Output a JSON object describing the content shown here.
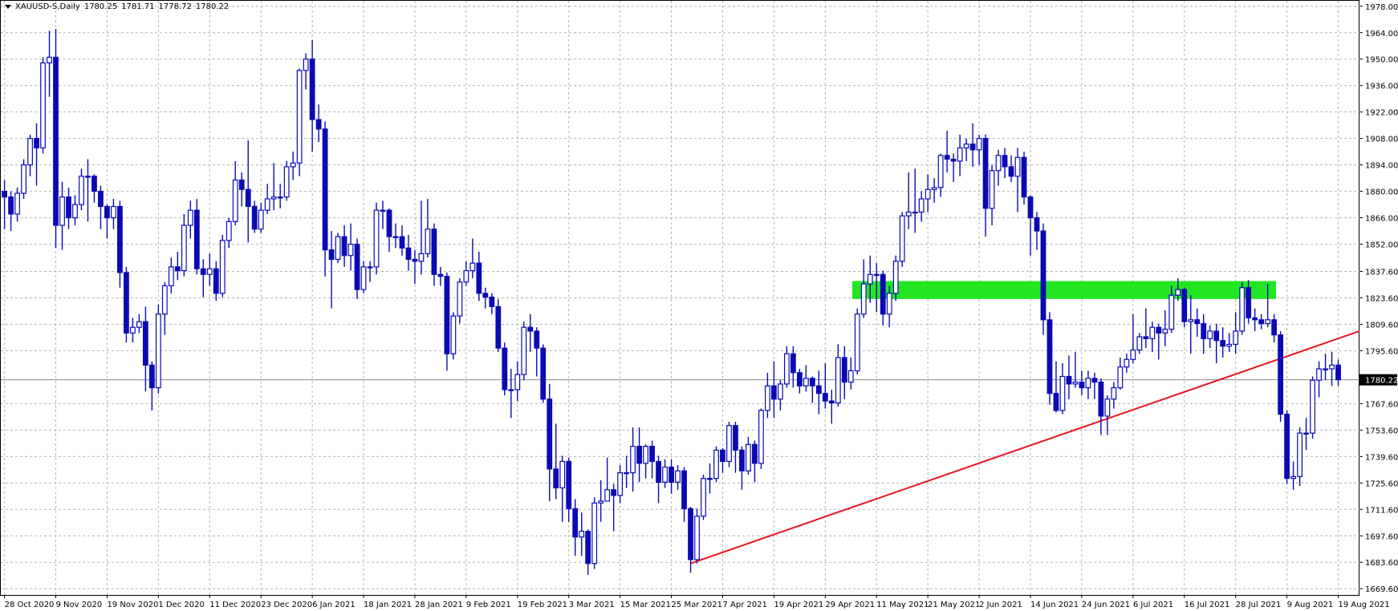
{
  "chart_data": {
    "type": "candlestick",
    "symbol": "XAUUSD-S,Daily",
    "quote": [
      1780.25,
      1781.71,
      1778.72,
      1780.22
    ],
    "categories": [
      "28 Oct 2020",
      null,
      null,
      null,
      null,
      null,
      null,
      null,
      "9 Nov 2020",
      null,
      null,
      null,
      null,
      null,
      null,
      null,
      "19 Nov 2020",
      null,
      null,
      null,
      null,
      null,
      null,
      null,
      "1 Dec 2020",
      null,
      null,
      null,
      null,
      null,
      null,
      null,
      "11 Dec 2020",
      null,
      null,
      null,
      null,
      null,
      null,
      null,
      "23 Dec 2020",
      null,
      null,
      null,
      null,
      null,
      null,
      null,
      "6 Jan 2021",
      null,
      null,
      null,
      null,
      null,
      null,
      null,
      "18 Jan 2021",
      null,
      null,
      null,
      null,
      null,
      null,
      null,
      "28 Jan 2021",
      null,
      null,
      null,
      null,
      null,
      null,
      null,
      "9 Feb 2021",
      null,
      null,
      null,
      null,
      null,
      null,
      null,
      "19 Feb 2021",
      null,
      null,
      null,
      null,
      null,
      null,
      null,
      "3 Mar 2021",
      null,
      null,
      null,
      null,
      null,
      null,
      null,
      "15 Mar 2021",
      null,
      null,
      null,
      null,
      null,
      null,
      null,
      "25 Mar 2021",
      null,
      null,
      null,
      null,
      null,
      null,
      null,
      "7 Apr 2021",
      null,
      null,
      null,
      null,
      null,
      null,
      null,
      "19 Apr 2021",
      null,
      null,
      null,
      null,
      null,
      null,
      null,
      "29 Apr 2021",
      null,
      null,
      null,
      null,
      null,
      null,
      null,
      "11 May 2021",
      null,
      null,
      null,
      null,
      null,
      null,
      null,
      "21 May 2021",
      null,
      null,
      null,
      null,
      null,
      null,
      null,
      "2 Jun 2021",
      null,
      null,
      null,
      null,
      null,
      null,
      null,
      "14 Jun 2021",
      null,
      null,
      null,
      null,
      null,
      null,
      null,
      "24 Jun 2021",
      null,
      null,
      null,
      null,
      null,
      null,
      null,
      "6 Jul 2021",
      null,
      null,
      null,
      null,
      null,
      null,
      null,
      "16 Jul 2021",
      null,
      null,
      null,
      null,
      null,
      null,
      null,
      "28 Jul 2021",
      null,
      null,
      null,
      null,
      null,
      null,
      null,
      "9 Aug 2021",
      null,
      null,
      null,
      null,
      null,
      null,
      null,
      "19 Aug 2021"
    ],
    "ohlc": [
      [
        1880,
        1886,
        1860,
        1877
      ],
      [
        1877,
        1880,
        1859,
        1868
      ],
      [
        1868,
        1882,
        1864,
        1879
      ],
      [
        1879,
        1897,
        1876,
        1894
      ],
      [
        1894,
        1910,
        1888,
        1908
      ],
      [
        1908,
        1916,
        1883,
        1903
      ],
      [
        1903,
        1951,
        1900,
        1948
      ],
      [
        1948,
        1965,
        1930,
        1951
      ],
      [
        1951,
        1966,
        1850,
        1862
      ],
      [
        1862,
        1885,
        1849,
        1877
      ],
      [
        1877,
        1882,
        1860,
        1866
      ],
      [
        1866,
        1878,
        1862,
        1873
      ],
      [
        1873,
        1892,
        1870,
        1888
      ],
      [
        1888,
        1897,
        1864,
        1888
      ],
      [
        1888,
        1889,
        1874,
        1880
      ],
      [
        1880,
        1883,
        1860,
        1872
      ],
      [
        1872,
        1873,
        1855,
        1866
      ],
      [
        1866,
        1876,
        1860,
        1872
      ],
      [
        1872,
        1875,
        1829,
        1837
      ],
      [
        1837,
        1840,
        1800,
        1805
      ],
      [
        1805,
        1813,
        1800,
        1808
      ],
      [
        1808,
        1815,
        1805,
        1811
      ],
      [
        1811,
        1819,
        1774,
        1788
      ],
      [
        1788,
        1790,
        1764,
        1776
      ],
      [
        1776,
        1820,
        1773,
        1815
      ],
      [
        1815,
        1832,
        1804,
        1830
      ],
      [
        1830,
        1845,
        1826,
        1840
      ],
      [
        1840,
        1848,
        1833,
        1838
      ],
      [
        1838,
        1868,
        1835,
        1862
      ],
      [
        1862,
        1875,
        1855,
        1870
      ],
      [
        1870,
        1876,
        1836,
        1839
      ],
      [
        1839,
        1844,
        1824,
        1836
      ],
      [
        1836,
        1847,
        1830,
        1839
      ],
      [
        1839,
        1843,
        1822,
        1826
      ],
      [
        1826,
        1857,
        1824,
        1854
      ],
      [
        1854,
        1866,
        1850,
        1864
      ],
      [
        1864,
        1896,
        1862,
        1886
      ],
      [
        1886,
        1890,
        1872,
        1881
      ],
      [
        1881,
        1907,
        1853,
        1872
      ],
      [
        1872,
        1875,
        1858,
        1860
      ],
      [
        1860,
        1874,
        1858,
        1870
      ],
      [
        1870,
        1884,
        1868,
        1876
      ],
      [
        1876,
        1895,
        1870,
        1877
      ],
      [
        1877,
        1884,
        1871,
        1877
      ],
      [
        1877,
        1896,
        1875,
        1893
      ],
      [
        1893,
        1901,
        1886,
        1895
      ],
      [
        1895,
        1945,
        1888,
        1944
      ],
      [
        1944,
        1953,
        1934,
        1950
      ],
      [
        1950,
        1960,
        1901,
        1918
      ],
      [
        1918,
        1926,
        1906,
        1913
      ],
      [
        1913,
        1917,
        1835,
        1849
      ],
      [
        1849,
        1859,
        1818,
        1844
      ],
      [
        1844,
        1858,
        1842,
        1856
      ],
      [
        1856,
        1862,
        1840,
        1846
      ],
      [
        1846,
        1863,
        1838,
        1852
      ],
      [
        1852,
        1855,
        1823,
        1828
      ],
      [
        1828,
        1843,
        1826,
        1840
      ],
      [
        1840,
        1843,
        1832,
        1840
      ],
      [
        1840,
        1874,
        1836,
        1870
      ],
      [
        1870,
        1875,
        1860,
        1870
      ],
      [
        1870,
        1871,
        1848,
        1856
      ],
      [
        1856,
        1863,
        1850,
        1856
      ],
      [
        1856,
        1862,
        1846,
        1850
      ],
      [
        1850,
        1857,
        1838,
        1844
      ],
      [
        1844,
        1849,
        1831,
        1843
      ],
      [
        1843,
        1875,
        1836,
        1847
      ],
      [
        1847,
        1876,
        1845,
        1860
      ],
      [
        1860,
        1863,
        1830,
        1836
      ],
      [
        1836,
        1840,
        1830,
        1835
      ],
      [
        1835,
        1837,
        1785,
        1794
      ],
      [
        1794,
        1816,
        1791,
        1814
      ],
      [
        1814,
        1834,
        1810,
        1832
      ],
      [
        1832,
        1843,
        1830,
        1838
      ],
      [
        1838,
        1855,
        1834,
        1842
      ],
      [
        1842,
        1848,
        1822,
        1826
      ],
      [
        1826,
        1829,
        1818,
        1824
      ],
      [
        1824,
        1826,
        1815,
        1819
      ],
      [
        1819,
        1823,
        1795,
        1797
      ],
      [
        1797,
        1800,
        1772,
        1775
      ],
      [
        1775,
        1786,
        1760,
        1775
      ],
      [
        1775,
        1790,
        1769,
        1783
      ],
      [
        1783,
        1811,
        1780,
        1808
      ],
      [
        1808,
        1815,
        1795,
        1806
      ],
      [
        1806,
        1808,
        1782,
        1797
      ],
      [
        1797,
        1799,
        1768,
        1770
      ],
      [
        1770,
        1778,
        1716,
        1733
      ],
      [
        1733,
        1757,
        1717,
        1723
      ],
      [
        1723,
        1740,
        1705,
        1737
      ],
      [
        1737,
        1739,
        1705,
        1712
      ],
      [
        1712,
        1717,
        1687,
        1697
      ],
      [
        1697,
        1710,
        1687,
        1700
      ],
      [
        1700,
        1701,
        1677,
        1683
      ],
      [
        1683,
        1718,
        1680,
        1715
      ],
      [
        1715,
        1727,
        1705,
        1716
      ],
      [
        1716,
        1739,
        1716,
        1722
      ],
      [
        1722,
        1725,
        1700,
        1719
      ],
      [
        1719,
        1735,
        1715,
        1731
      ],
      [
        1731,
        1740,
        1723,
        1731
      ],
      [
        1731,
        1755,
        1721,
        1745
      ],
      [
        1745,
        1755,
        1726,
        1736
      ],
      [
        1736,
        1746,
        1728,
        1745
      ],
      [
        1745,
        1748,
        1728,
        1737
      ],
      [
        1737,
        1740,
        1715,
        1726
      ],
      [
        1726,
        1738,
        1723,
        1734
      ],
      [
        1734,
        1738,
        1720,
        1726
      ],
      [
        1726,
        1735,
        1722,
        1732
      ],
      [
        1732,
        1734,
        1705,
        1712
      ],
      [
        1712,
        1713,
        1678,
        1685
      ],
      [
        1685,
        1712,
        1683,
        1708
      ],
      [
        1708,
        1730,
        1706,
        1728
      ],
      [
        1728,
        1736,
        1720,
        1728
      ],
      [
        1728,
        1745,
        1726,
        1743
      ],
      [
        1743,
        1744,
        1731,
        1737
      ],
      [
        1737,
        1758,
        1734,
        1756
      ],
      [
        1756,
        1758,
        1731,
        1743
      ],
      [
        1743,
        1745,
        1722,
        1732
      ],
      [
        1732,
        1750,
        1730,
        1746
      ],
      [
        1746,
        1748,
        1726,
        1736
      ],
      [
        1736,
        1765,
        1733,
        1764
      ],
      [
        1764,
        1784,
        1760,
        1777
      ],
      [
        1777,
        1790,
        1760,
        1770
      ],
      [
        1770,
        1780,
        1764,
        1778
      ],
      [
        1778,
        1798,
        1776,
        1794
      ],
      [
        1794,
        1798,
        1776,
        1784
      ],
      [
        1784,
        1786,
        1773,
        1777
      ],
      [
        1777,
        1788,
        1774,
        1781
      ],
      [
        1781,
        1782,
        1768,
        1777
      ],
      [
        1777,
        1785,
        1762,
        1773
      ],
      [
        1773,
        1789,
        1765,
        1769
      ],
      [
        1769,
        1775,
        1757,
        1768
      ],
      [
        1768,
        1799,
        1766,
        1792
      ],
      [
        1792,
        1798,
        1770,
        1779
      ],
      [
        1779,
        1792,
        1775,
        1785
      ],
      [
        1785,
        1818,
        1783,
        1815
      ],
      [
        1815,
        1844,
        1813,
        1831
      ],
      [
        1831,
        1846,
        1821,
        1836
      ],
      [
        1836,
        1842,
        1816,
        1836
      ],
      [
        1836,
        1838,
        1809,
        1815
      ],
      [
        1815,
        1830,
        1808,
        1826
      ],
      [
        1826,
        1846,
        1822,
        1843
      ],
      [
        1843,
        1869,
        1840,
        1867
      ],
      [
        1867,
        1890,
        1860,
        1869
      ],
      [
        1869,
        1892,
        1858,
        1869
      ],
      [
        1869,
        1880,
        1864,
        1876
      ],
      [
        1876,
        1889,
        1869,
        1881
      ],
      [
        1881,
        1887,
        1874,
        1882
      ],
      [
        1882,
        1900,
        1877,
        1899
      ],
      [
        1899,
        1912,
        1890,
        1897
      ],
      [
        1897,
        1900,
        1885,
        1896
      ],
      [
        1896,
        1910,
        1888,
        1903
      ],
      [
        1903,
        1908,
        1896,
        1905
      ],
      [
        1905,
        1916,
        1893,
        1902
      ],
      [
        1902,
        1910,
        1894,
        1908
      ],
      [
        1908,
        1910,
        1856,
        1871
      ],
      [
        1871,
        1894,
        1862,
        1891
      ],
      [
        1891,
        1902,
        1883,
        1899
      ],
      [
        1899,
        1903,
        1887,
        1893
      ],
      [
        1893,
        1899,
        1885,
        1888
      ],
      [
        1888,
        1903,
        1869,
        1898
      ],
      [
        1898,
        1901,
        1873,
        1877
      ],
      [
        1877,
        1878,
        1846,
        1866
      ],
      [
        1866,
        1869,
        1849,
        1859
      ],
      [
        1859,
        1863,
        1804,
        1812
      ],
      [
        1812,
        1816,
        1767,
        1773
      ],
      [
        1773,
        1790,
        1763,
        1764
      ],
      [
        1764,
        1789,
        1762,
        1782
      ],
      [
        1782,
        1793,
        1770,
        1778
      ],
      [
        1778,
        1795,
        1776,
        1779
      ],
      [
        1779,
        1785,
        1772,
        1776
      ],
      [
        1776,
        1785,
        1770,
        1781
      ],
      [
        1781,
        1784,
        1770,
        1779
      ],
      [
        1779,
        1781,
        1751,
        1761
      ],
      [
        1761,
        1772,
        1751,
        1770
      ],
      [
        1770,
        1779,
        1765,
        1776
      ],
      [
        1776,
        1792,
        1775,
        1787
      ],
      [
        1787,
        1794,
        1784,
        1791
      ],
      [
        1791,
        1815,
        1789,
        1796
      ],
      [
        1796,
        1805,
        1794,
        1803
      ],
      [
        1803,
        1818,
        1797,
        1802
      ],
      [
        1802,
        1811,
        1795,
        1808
      ],
      [
        1808,
        1810,
        1791,
        1805
      ],
      [
        1805,
        1817,
        1798,
        1807
      ],
      [
        1807,
        1830,
        1805,
        1825
      ],
      [
        1825,
        1834,
        1822,
        1828
      ],
      [
        1828,
        1829,
        1808,
        1811
      ],
      [
        1811,
        1825,
        1794,
        1812
      ],
      [
        1812,
        1818,
        1803,
        1810
      ],
      [
        1810,
        1815,
        1794,
        1802
      ],
      [
        1802,
        1809,
        1797,
        1806
      ],
      [
        1806,
        1810,
        1789,
        1801
      ],
      [
        1801,
        1808,
        1792,
        1798
      ],
      [
        1798,
        1805,
        1795,
        1799
      ],
      [
        1799,
        1816,
        1794,
        1806
      ],
      [
        1806,
        1832,
        1804,
        1829
      ],
      [
        1829,
        1833,
        1810,
        1813
      ],
      [
        1813,
        1818,
        1806,
        1812
      ],
      [
        1812,
        1815,
        1807,
        1810
      ],
      [
        1810,
        1831,
        1808,
        1812
      ],
      [
        1812,
        1815,
        1800,
        1804
      ],
      [
        1804,
        1806,
        1758,
        1762
      ],
      [
        1762,
        1764,
        1725,
        1728
      ],
      [
        1728,
        1737,
        1722,
        1729
      ],
      [
        1729,
        1755,
        1724,
        1752
      ],
      [
        1752,
        1760,
        1743,
        1752
      ],
      [
        1752,
        1782,
        1749,
        1780
      ],
      [
        1780,
        1790,
        1771,
        1786
      ],
      [
        1786,
        1794,
        1780,
        1786
      ],
      [
        1786,
        1795,
        1777,
        1788
      ],
      [
        1788,
        1791,
        1777,
        1780.22
      ]
    ],
    "up_color": "#ffffff",
    "down_color": "#0a0ab4",
    "wick_color": "#0a0ab4",
    "zone": [
      1823,
      1832.5
    ],
    "zone_color": "#22e622",
    "trendline": [
      1683,
      1806
    ],
    "trendline_color": "#e8141e",
    "ylim": [
      1666.3,
      1981.3
    ],
    "yticks": [
      {
        "value": 1978,
        "label": "1978.00"
      },
      {
        "value": 1964,
        "label": "1964.00"
      },
      {
        "value": 1950,
        "label": "1950.00"
      },
      {
        "value": 1936,
        "label": "1936.00"
      },
      {
        "value": 1922,
        "label": "1922.00"
      },
      {
        "value": 1908,
        "label": "1908.00"
      },
      {
        "value": 1894,
        "label": "1894.00"
      },
      {
        "value": 1880,
        "label": "1880.00"
      },
      {
        "value": 1866,
        "label": "1866.00"
      },
      {
        "value": 1852,
        "label": "1852.00"
      },
      {
        "value": 1837.6,
        "label": "1837.60"
      },
      {
        "value": 1823.6,
        "label": "1823.60"
      },
      {
        "value": 1809.6,
        "label": "1809.60"
      },
      {
        "value": 1795.6,
        "label": "1795.60"
      },
      {
        "value": 1767.6,
        "label": "1767.60"
      },
      {
        "value": 1753.6,
        "label": "1753.60"
      },
      {
        "value": 1739.6,
        "label": "1739.60"
      },
      {
        "value": 1725.6,
        "label": "1725.60"
      },
      {
        "value": 1711.6,
        "label": "1711.60"
      },
      {
        "value": 1697.6,
        "label": "1697.60"
      },
      {
        "value": 1683.6,
        "label": "1683.60"
      },
      {
        "value": 1669.6,
        "label": "1669.60"
      }
    ],
    "grid": true
  }
}
